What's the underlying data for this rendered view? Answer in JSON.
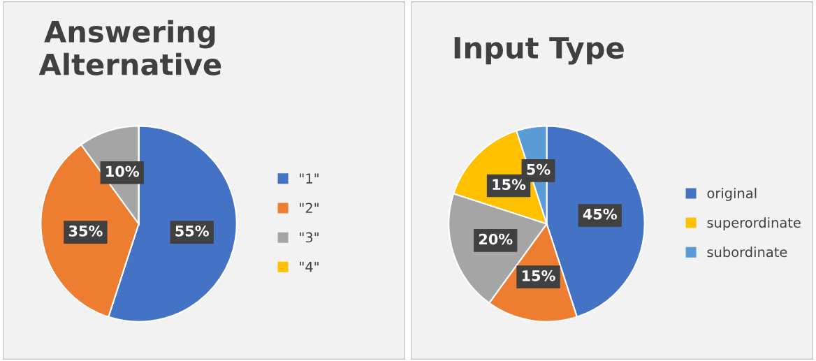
{
  "chart_data": [
    {
      "type": "pie",
      "title": "Answering Alternative",
      "categories": [
        "\"1\"",
        "\"2\"",
        "\"3\"",
        "\"4\""
      ],
      "values": [
        55,
        35,
        10,
        0
      ],
      "colors": [
        "#4472c4",
        "#ed7d31",
        "#a5a5a5",
        "#ffc000"
      ],
      "value_labels": [
        "55%",
        "35%",
        "10%",
        null
      ],
      "legend": "right"
    },
    {
      "type": "pie",
      "title": "Input Type",
      "categories": [
        "original",
        null,
        null,
        "superordinate",
        "subordinate"
      ],
      "values": [
        45,
        15,
        20,
        15,
        5
      ],
      "colors": [
        "#4472c4",
        "#ed7d31",
        "#a5a5a5",
        "#ffc000",
        "#5b9bd5"
      ],
      "value_labels": [
        "45%",
        "15%",
        "20%",
        "15%",
        "5%"
      ],
      "legend": "right"
    }
  ]
}
